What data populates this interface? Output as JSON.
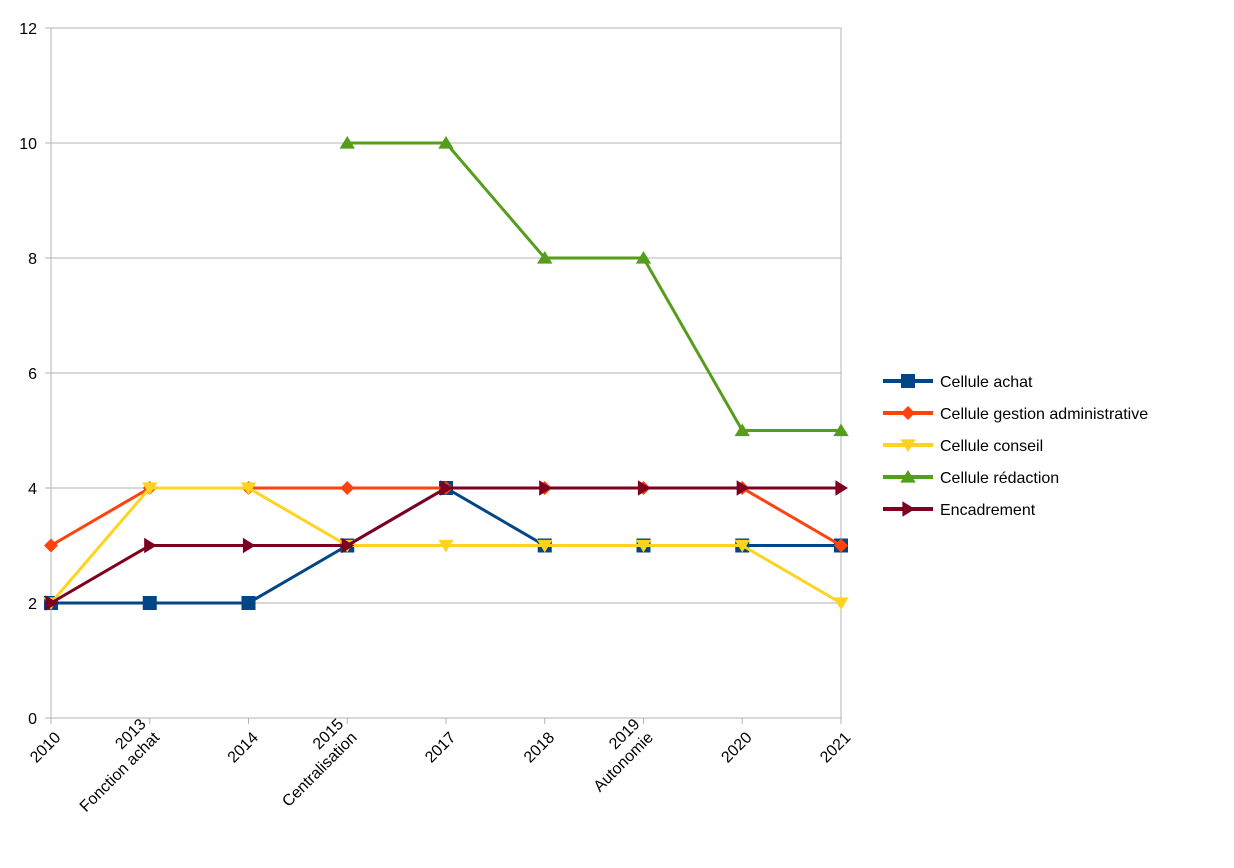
{
  "chart_data": {
    "type": "line",
    "title": "",
    "xlabel": "",
    "ylabel": "",
    "categories": [
      [
        "2010"
      ],
      [
        "2013",
        "Fonction achat"
      ],
      [
        "2014"
      ],
      [
        "2015",
        "Centralisation"
      ],
      [
        "2017"
      ],
      [
        "2018"
      ],
      [
        "2019",
        "Autonomie"
      ],
      [
        "2020"
      ],
      [
        "2021"
      ]
    ],
    "ylim": [
      0,
      12
    ],
    "yticks": [
      0,
      2,
      4,
      6,
      8,
      10,
      12
    ],
    "grid": true,
    "legend": "right",
    "series": [
      {
        "name": "Cellule achat",
        "color": "#004586",
        "marker": "square",
        "values": [
          2,
          2,
          2,
          3,
          4,
          3,
          3,
          3,
          3
        ]
      },
      {
        "name": "Cellule gestion administrative",
        "color": "#ff420e",
        "marker": "diamond",
        "values": [
          3,
          4,
          4,
          4,
          4,
          4,
          4,
          4,
          3
        ]
      },
      {
        "name": "Cellule conseil",
        "color": "#ffd320",
        "marker": "triangle-down",
        "values": [
          2,
          4,
          4,
          3,
          3,
          3,
          3,
          3,
          2
        ]
      },
      {
        "name": "Cellule rédaction",
        "color": "#579d1c",
        "marker": "triangle-up",
        "values": [
          null,
          null,
          null,
          10,
          10,
          8,
          8,
          5,
          5
        ]
      },
      {
        "name": "Encadrement",
        "color": "#7e0021",
        "marker": "triangle-right",
        "values": [
          2,
          3,
          3,
          3,
          4,
          4,
          4,
          4,
          4
        ]
      }
    ]
  }
}
